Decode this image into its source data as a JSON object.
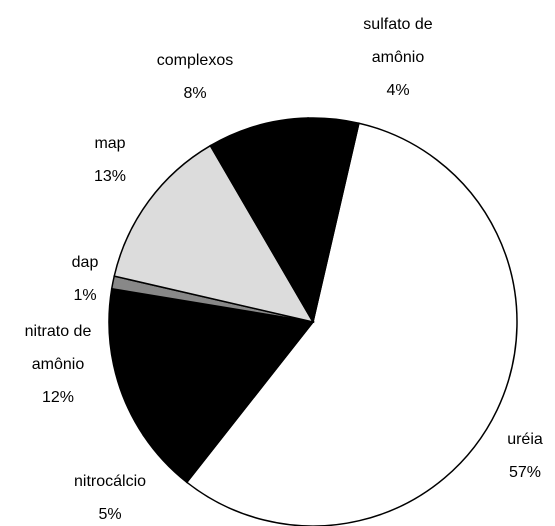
{
  "chart_data": {
    "type": "pie",
    "categories": [
      "uréia",
      "nitrocálcio",
      "nitrato de amônio",
      "dap",
      "map",
      "complexos",
      "sulfato de amônio"
    ],
    "values": [
      57,
      5,
      12,
      1,
      13,
      8,
      4
    ],
    "value_labels": [
      "57%",
      "5%",
      "12%",
      "1%",
      "13%",
      "8%",
      "4%"
    ],
    "colors": [
      "#ffffff",
      "#000000",
      "#000000",
      "#888888",
      "#dcdcdc",
      "#000000",
      "#000000"
    ]
  }
}
